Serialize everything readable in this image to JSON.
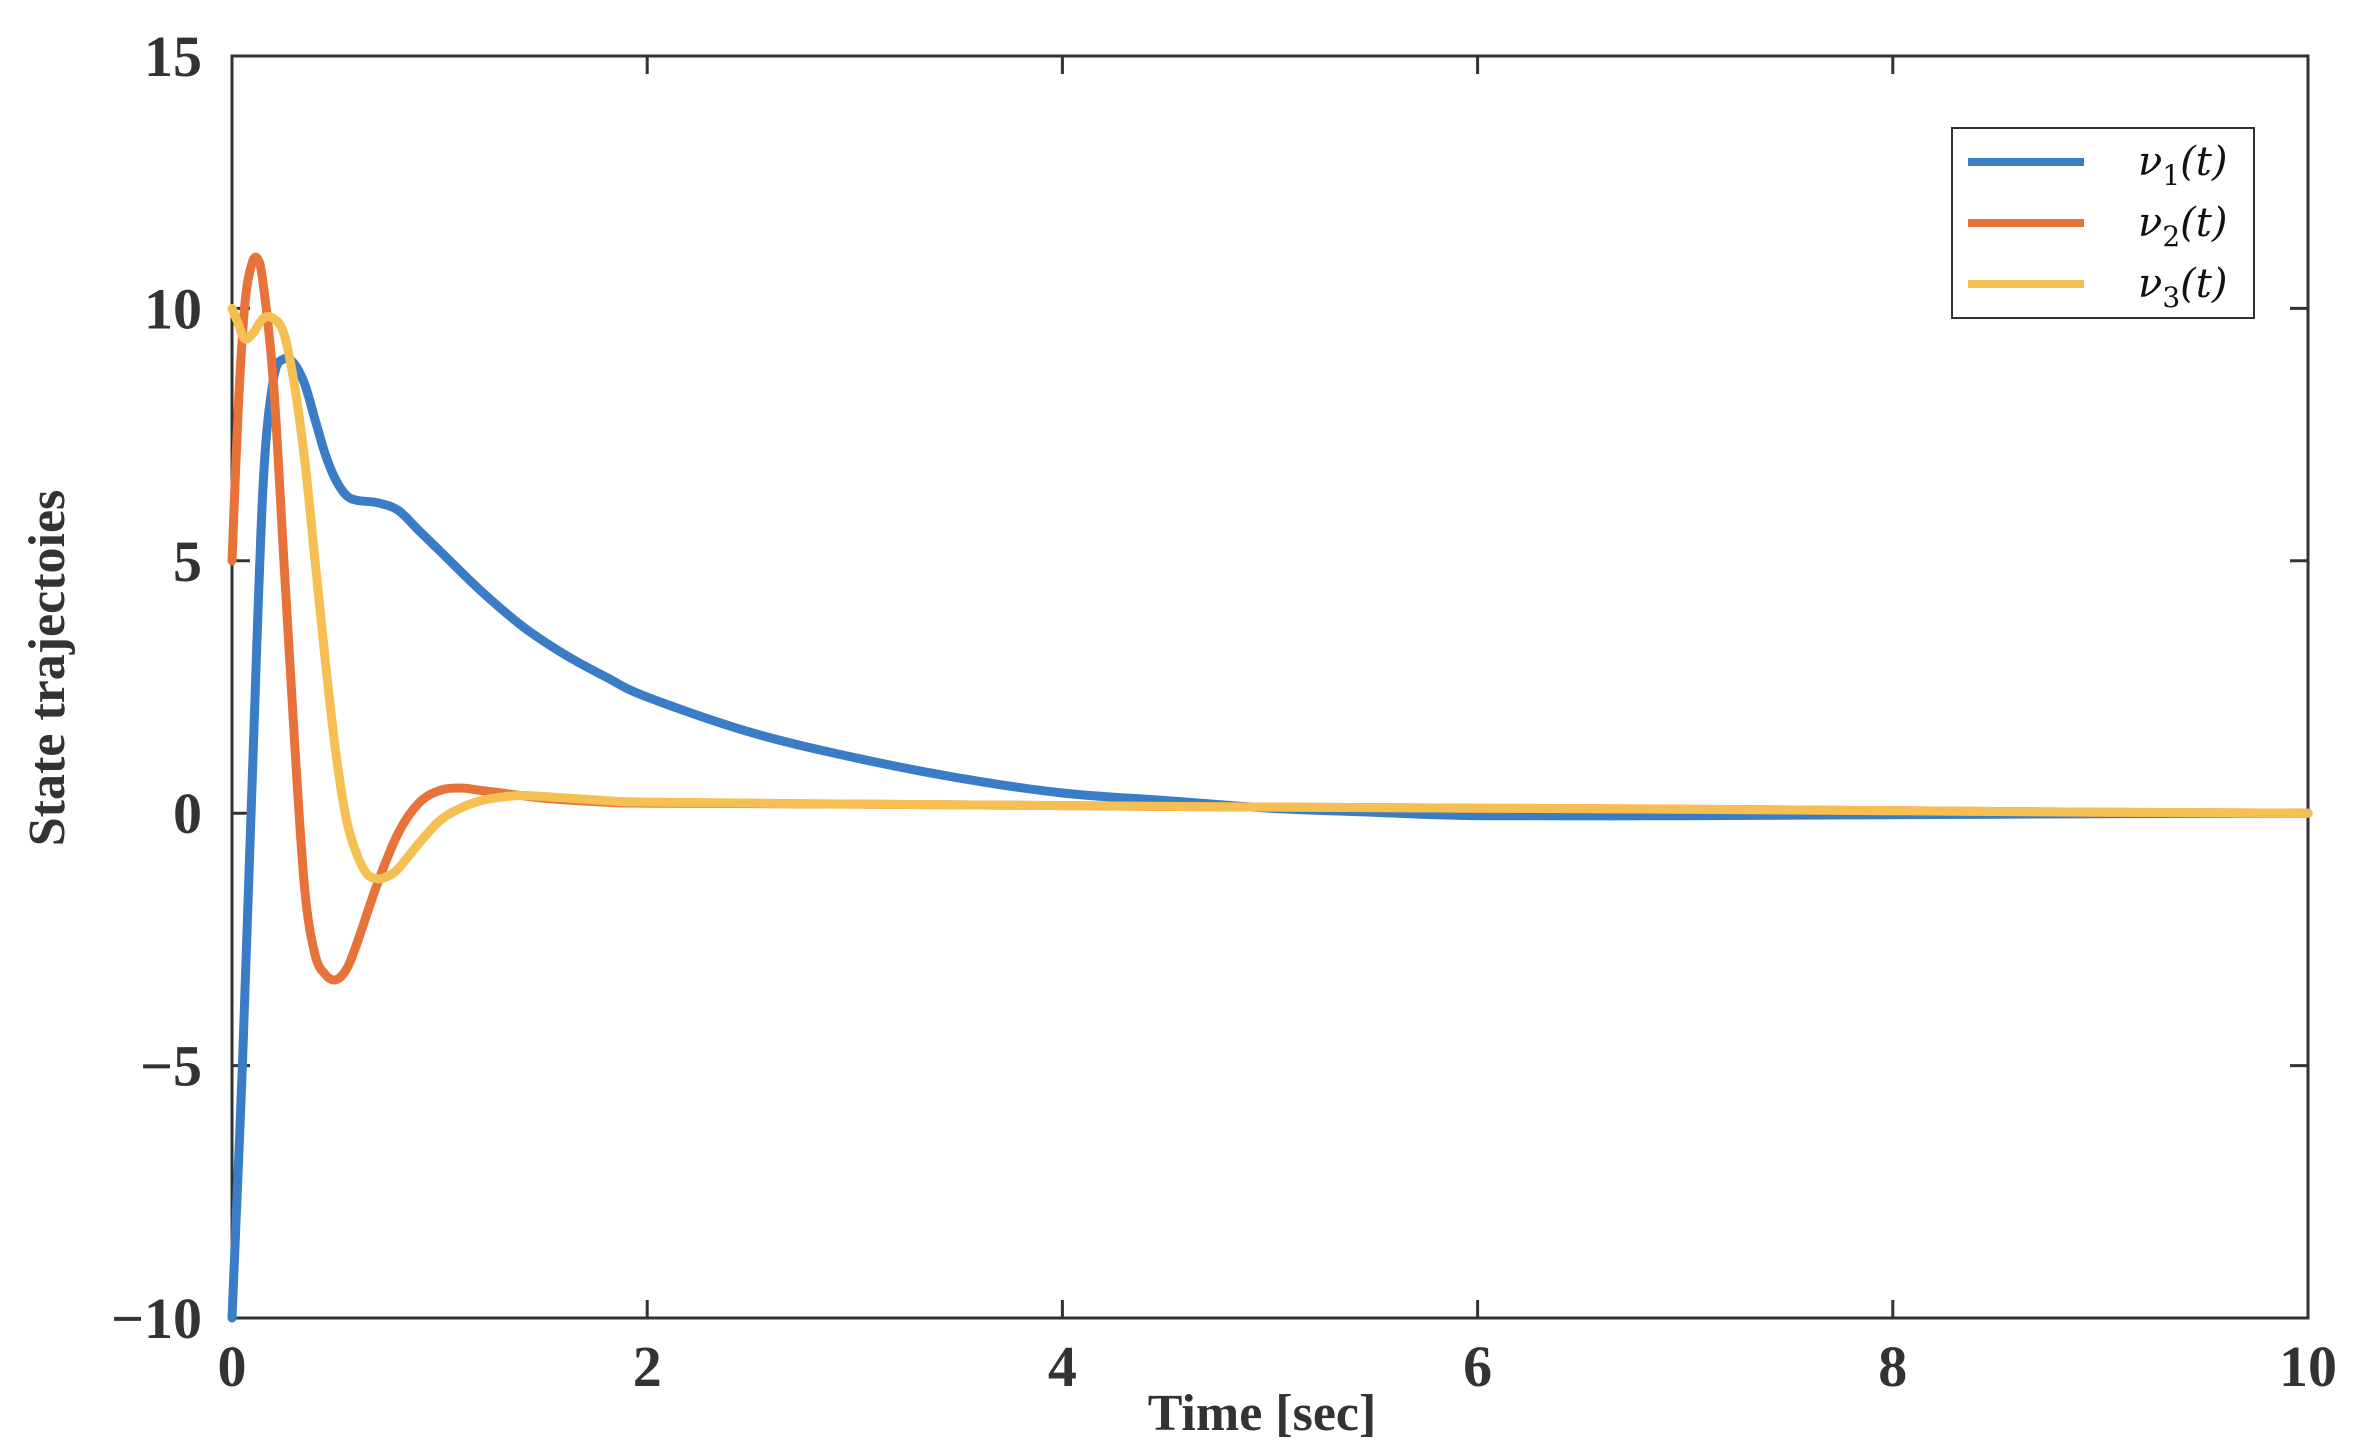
{
  "chart_data": {
    "type": "line",
    "title": "",
    "xlabel": "Time [sec]",
    "ylabel": "State trajectoies",
    "xlim": [
      0,
      10
    ],
    "ylim": [
      -10,
      15
    ],
    "xticks": [
      0,
      2,
      4,
      6,
      8,
      10
    ],
    "xtick_labels": [
      "0",
      "2",
      "4",
      "6",
      "8",
      "10"
    ],
    "yticks": [
      -10,
      -5,
      0,
      5,
      10,
      15
    ],
    "ytick_labels": [
      "−10",
      "−5",
      "0",
      "5",
      "10",
      "15"
    ],
    "grid": false,
    "legend_position": "top-right",
    "series": [
      {
        "name": "ν1(t)",
        "name_base": "ν",
        "name_sub": "1",
        "name_tail": "(t)",
        "color": "#3a7dc6",
        "x": [
          0,
          0.05,
          0.1,
          0.15,
          0.2,
          0.25,
          0.3,
          0.35,
          0.4,
          0.45,
          0.5,
          0.55,
          0.6,
          0.7,
          0.8,
          0.9,
          1.0,
          1.2,
          1.4,
          1.6,
          1.8,
          2.0,
          2.5,
          3.0,
          3.5,
          4.0,
          4.5,
          5.0,
          5.5,
          6.0,
          7.0,
          8.0,
          9.0,
          10.0
        ],
        "y": [
          -10,
          -5,
          1,
          6.5,
          8.6,
          9.0,
          8.9,
          8.5,
          7.8,
          7.1,
          6.6,
          6.3,
          6.2,
          6.15,
          6.0,
          5.6,
          5.2,
          4.4,
          3.7,
          3.15,
          2.7,
          2.3,
          1.6,
          1.1,
          0.7,
          0.4,
          0.25,
          0.1,
          0.02,
          -0.05,
          -0.05,
          -0.03,
          -0.01,
          0
        ]
      },
      {
        "name": "ν2(t)",
        "name_base": "ν",
        "name_sub": "2",
        "name_tail": "(t)",
        "color": "#e8733a",
        "x": [
          0,
          0.03,
          0.06,
          0.09,
          0.12,
          0.15,
          0.2,
          0.25,
          0.3,
          0.35,
          0.4,
          0.45,
          0.5,
          0.55,
          0.6,
          0.7,
          0.8,
          0.9,
          1.0,
          1.1,
          1.2,
          1.3,
          1.5,
          1.8,
          2.0,
          3.0,
          4.0,
          5.0,
          6.0,
          7.0,
          8.0,
          9.0,
          10.0
        ],
        "y": [
          5,
          8,
          10,
          10.8,
          11.0,
          10.5,
          8.5,
          5,
          1.5,
          -1.5,
          -2.8,
          -3.2,
          -3.3,
          -3.1,
          -2.6,
          -1.4,
          -0.4,
          0.2,
          0.45,
          0.5,
          0.45,
          0.4,
          0.3,
          0.22,
          0.2,
          0.18,
          0.15,
          0.12,
          0.1,
          0.08,
          0.05,
          0.02,
          0
        ]
      },
      {
        "name": "ν3(t)",
        "name_base": "ν",
        "name_sub": "3",
        "name_tail": "(t)",
        "color": "#f5bf52",
        "x": [
          0,
          0.03,
          0.06,
          0.1,
          0.15,
          0.2,
          0.25,
          0.3,
          0.35,
          0.4,
          0.45,
          0.5,
          0.55,
          0.6,
          0.65,
          0.7,
          0.75,
          0.8,
          0.9,
          1.0,
          1.1,
          1.2,
          1.3,
          1.4,
          1.5,
          1.8,
          2.0,
          3.0,
          4.0,
          5.0,
          6.0,
          7.0,
          8.0,
          9.0,
          10.0
        ],
        "y": [
          10,
          9.7,
          9.4,
          9.5,
          9.8,
          9.8,
          9.5,
          8.5,
          7.0,
          5.0,
          3.0,
          1.2,
          -0.1,
          -0.8,
          -1.2,
          -1.3,
          -1.25,
          -1.1,
          -0.6,
          -0.15,
          0.1,
          0.25,
          0.32,
          0.35,
          0.33,
          0.25,
          0.22,
          0.18,
          0.15,
          0.12,
          0.1,
          0.08,
          0.05,
          0.02,
          0
        ]
      }
    ]
  }
}
